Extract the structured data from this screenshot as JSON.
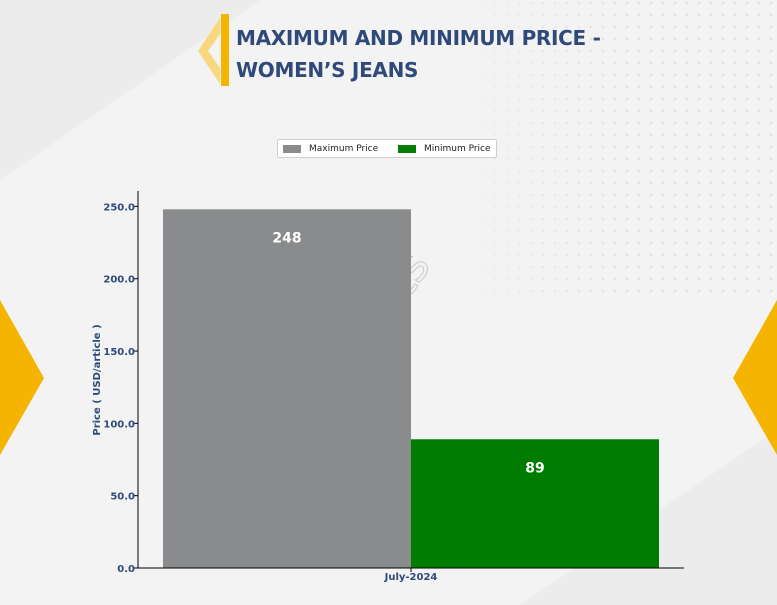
{
  "page": {
    "title_line1": "MAXIMUM AND MINIMUM PRICE -",
    "title_line2": "WOMEN’S JEANS",
    "watermark": "DNJ Reports",
    "colors": {
      "title": "#2f4a7a",
      "accent": "#f5b400",
      "accent_light": "#f9d77e"
    }
  },
  "chart_data": {
    "type": "bar",
    "categories": [
      "July-2024"
    ],
    "series": [
      {
        "name": "Maximum Price",
        "color": "#8a8b8d",
        "values": [
          248
        ]
      },
      {
        "name": "Minimum Price",
        "color": "#007d00",
        "values": [
          89
        ]
      }
    ],
    "ylabel": "Price ( USD/article )",
    "ylim": [
      0,
      260
    ],
    "yticks": [
      0.0,
      50.0,
      100.0,
      150.0,
      200.0,
      250.0
    ],
    "ytick_labels": [
      "0.0",
      "50.0",
      "100.0",
      "150.0",
      "200.0",
      "250.0"
    ],
    "data_labels": [
      "248",
      "89"
    ],
    "legend_position": "top-center",
    "grid": false
  }
}
